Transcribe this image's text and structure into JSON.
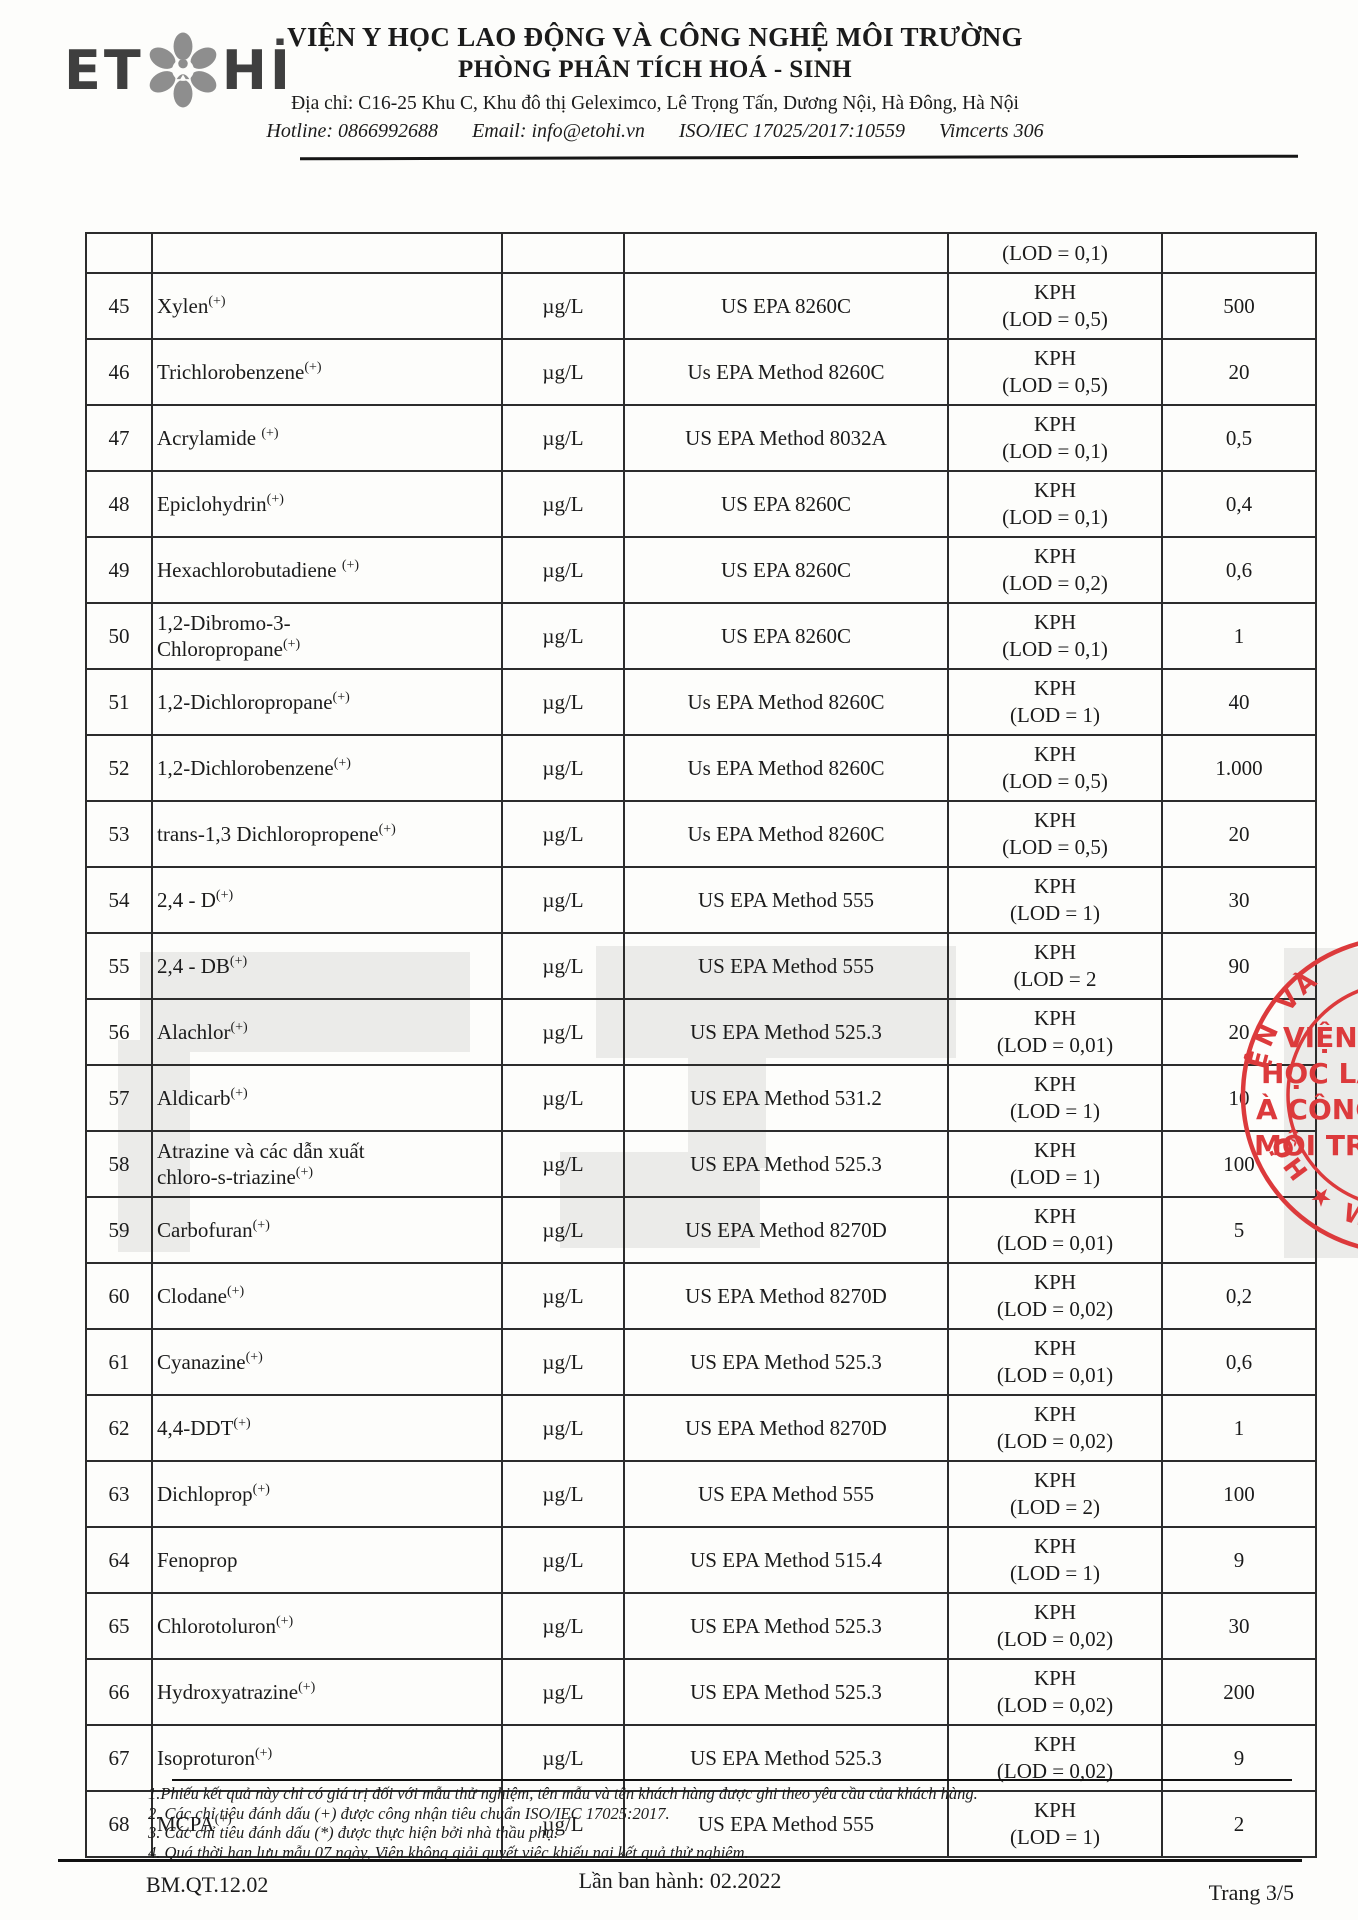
{
  "header": {
    "logo_left": "ET",
    "logo_right": "Hİ",
    "org_name": "VIỆN Y HỌC LAO ĐỘNG VÀ CÔNG NGHỆ MÔI TRƯỜNG",
    "dept_name": "PHÒNG PHÂN TÍCH HOÁ - SINH",
    "address": "Địa chỉ: C16-25 Khu C, Khu đô thị Geleximco, Lê Trọng Tấn, Dương Nội, Hà Đông, Hà Nội",
    "hotline": "Hotline: 0866992688",
    "email": "Email: info@etohi.vn",
    "iso": "ISO/IEC 17025/2017:10559",
    "vimcerts": "Vimcerts 306"
  },
  "table": {
    "rows": [
      {
        "stt": "",
        "name": "",
        "sup": "",
        "unit": "",
        "method": "",
        "result": "",
        "lod": "(LOD = 0,1)",
        "limit": ""
      },
      {
        "stt": "45",
        "name": "Xylen",
        "sup": "(+)",
        "unit": "µg/L",
        "method": "US EPA 8260C",
        "result": "KPH",
        "lod": "(LOD = 0,5)",
        "limit": "500"
      },
      {
        "stt": "46",
        "name": "Trichlorobenzene",
        "sup": "(+)",
        "unit": "µg/L",
        "method": "Us EPA Method 8260C",
        "result": "KPH",
        "lod": "(LOD = 0,5)",
        "limit": "20"
      },
      {
        "stt": "47",
        "name": "Acrylamide ",
        "sup": "(+)",
        "unit": "µg/L",
        "method": "US EPA Method 8032A",
        "result": "KPH",
        "lod": "(LOD = 0,1)",
        "limit": "0,5"
      },
      {
        "stt": "48",
        "name": "Epiclohydrin",
        "sup": "(+)",
        "unit": "µg/L",
        "method": "US EPA 8260C",
        "result": "KPH",
        "lod": "(LOD = 0,1)",
        "limit": "0,4"
      },
      {
        "stt": "49",
        "name": "Hexachlorobutadiene ",
        "sup": "(+)",
        "unit": "µg/L",
        "method": "US EPA 8260C",
        "result": "KPH",
        "lod": "(LOD = 0,2)",
        "limit": "0,6"
      },
      {
        "stt": "50",
        "name": "1,2-Dibromo-3-\nChloropropane",
        "sup": "(+)",
        "unit": "µg/L",
        "method": "US EPA 8260C",
        "result": "KPH",
        "lod": "(LOD = 0,1)",
        "limit": "1"
      },
      {
        "stt": "51",
        "name": "1,2-Dichloropropane",
        "sup": "(+)",
        "unit": "µg/L",
        "method": "Us EPA Method 8260C",
        "result": "KPH",
        "lod": "(LOD = 1)",
        "limit": "40"
      },
      {
        "stt": "52",
        "name": "1,2-Dichlorobenzene",
        "sup": "(+)",
        "unit": "µg/L",
        "method": "Us EPA Method 8260C",
        "result": "KPH",
        "lod": "(LOD = 0,5)",
        "limit": "1.000"
      },
      {
        "stt": "53",
        "name": "trans-1,3 Dichloropropene",
        "sup": "(+)",
        "unit": "µg/L",
        "method": "Us EPA Method 8260C",
        "result": "KPH",
        "lod": "(LOD = 0,5)",
        "limit": "20"
      },
      {
        "stt": "54",
        "name": "2,4 - D",
        "sup": "(+)",
        "unit": "µg/L",
        "method": "US EPA Method 555",
        "result": "KPH",
        "lod": "(LOD = 1)",
        "limit": "30"
      },
      {
        "stt": "55",
        "name": "2,4 - DB",
        "sup": "(+)",
        "unit": "µg/L",
        "method": "US EPA Method 555",
        "result": "KPH",
        "lod": "(LOD = 2",
        "limit": "90"
      },
      {
        "stt": "56",
        "name": "Alachlor",
        "sup": "(+)",
        "unit": "µg/L",
        "method": "US EPA Method 525.3",
        "result": "KPH",
        "lod": "(LOD = 0,01)",
        "limit": "20"
      },
      {
        "stt": "57",
        "name": "Aldicarb",
        "sup": "(+)",
        "unit": "µg/L",
        "method": "US EPA Method 531.2",
        "result": "KPH",
        "lod": "(LOD = 1)",
        "limit": "10"
      },
      {
        "stt": "58",
        "name": "Atrazine và các dẫn xuất\nchloro-s-triazine",
        "sup": "(+)",
        "unit": "µg/L",
        "method": "US EPA Method 525.3",
        "result": "KPH",
        "lod": "(LOD = 1)",
        "limit": "100"
      },
      {
        "stt": "59",
        "name": "Carbofuran",
        "sup": "(+)",
        "unit": "µg/L",
        "method": "US EPA Method 8270D",
        "result": "KPH",
        "lod": "(LOD = 0,01)",
        "limit": "5"
      },
      {
        "stt": "60",
        "name": "Clodane",
        "sup": "(+)",
        "unit": "µg/L",
        "method": "US EPA Method 8270D",
        "result": "KPH",
        "lod": "(LOD = 0,02)",
        "limit": "0,2"
      },
      {
        "stt": "61",
        "name": "Cyanazine",
        "sup": "(+)",
        "unit": "µg/L",
        "method": "US EPA Method 525.3",
        "result": "KPH",
        "lod": "(LOD = 0,01)",
        "limit": "0,6"
      },
      {
        "stt": "62",
        "name": "4,4-DDT",
        "sup": "(+)",
        "unit": "µg/L",
        "method": "US EPA Method 8270D",
        "result": "KPH",
        "lod": "(LOD = 0,02)",
        "limit": "1"
      },
      {
        "stt": "63",
        "name": "Dichloprop",
        "sup": "(+)",
        "unit": "µg/L",
        "method": "US EPA Method 555",
        "result": "KPH",
        "lod": "(LOD = 2)",
        "limit": "100"
      },
      {
        "stt": "64",
        "name": "Fenoprop",
        "sup": "",
        "unit": "µg/L",
        "method": "US EPA Method 515.4",
        "result": "KPH",
        "lod": "(LOD = 1)",
        "limit": "9"
      },
      {
        "stt": "65",
        "name": "Chlorotoluron",
        "sup": "(+)",
        "unit": "µg/L",
        "method": "US EPA Method 525.3",
        "result": "KPH",
        "lod": "(LOD = 0,02)",
        "limit": "30"
      },
      {
        "stt": "66",
        "name": "Hydroxyatrazine",
        "sup": "(+)",
        "unit": "µg/L",
        "method": "US EPA Method 525.3",
        "result": "KPH",
        "lod": "(LOD = 0,02)",
        "limit": "200"
      },
      {
        "stt": "67",
        "name": "Isoproturon",
        "sup": "(+)",
        "unit": "µg/L",
        "method": "US EPA Method 525.3",
        "result": "KPH",
        "lod": "(LOD = 0,02)",
        "limit": "9"
      },
      {
        "stt": "68",
        "name": "MCPA",
        "sup": "(+)",
        "unit": "µg/L",
        "method": "US EPA Method 555",
        "result": "KPH",
        "lod": "(LOD = 1)",
        "limit": "2"
      }
    ]
  },
  "stamp": {
    "color": "#dc3a3c",
    "arc_top": "ỆN VÀ",
    "line1": "VIỆN",
    "line2": "HỌC LAO Đ",
    "line3": "À CÔNG N",
    "line4": "MÔI TRƯỜ",
    "arc_bottom": "ỘH ★ W"
  },
  "notes": [
    "1.Phiếu kết quả này chỉ có giá trị đối với mẫu thử nghiệm, tên mẫu và tên khách hàng được ghi theo yêu cầu của khách hàng.",
    "2. Các chỉ tiêu đánh dấu (+) được công nhận tiêu chuẩn ISO/IEC 17025:2017.",
    "3. Các chỉ tiêu đánh dấu (*) được thực hiện bởi nhà thầu phụ.",
    "4. Quá thời hạn lưu mẫu 07 ngày, Viện không giải quyết việc khiếu nại kết quả thử nghiệm."
  ],
  "footer": {
    "doc_code": "BM.QT.12.02",
    "issue": "Lần ban hành: 02.2022",
    "page": "Trang 3/5"
  }
}
